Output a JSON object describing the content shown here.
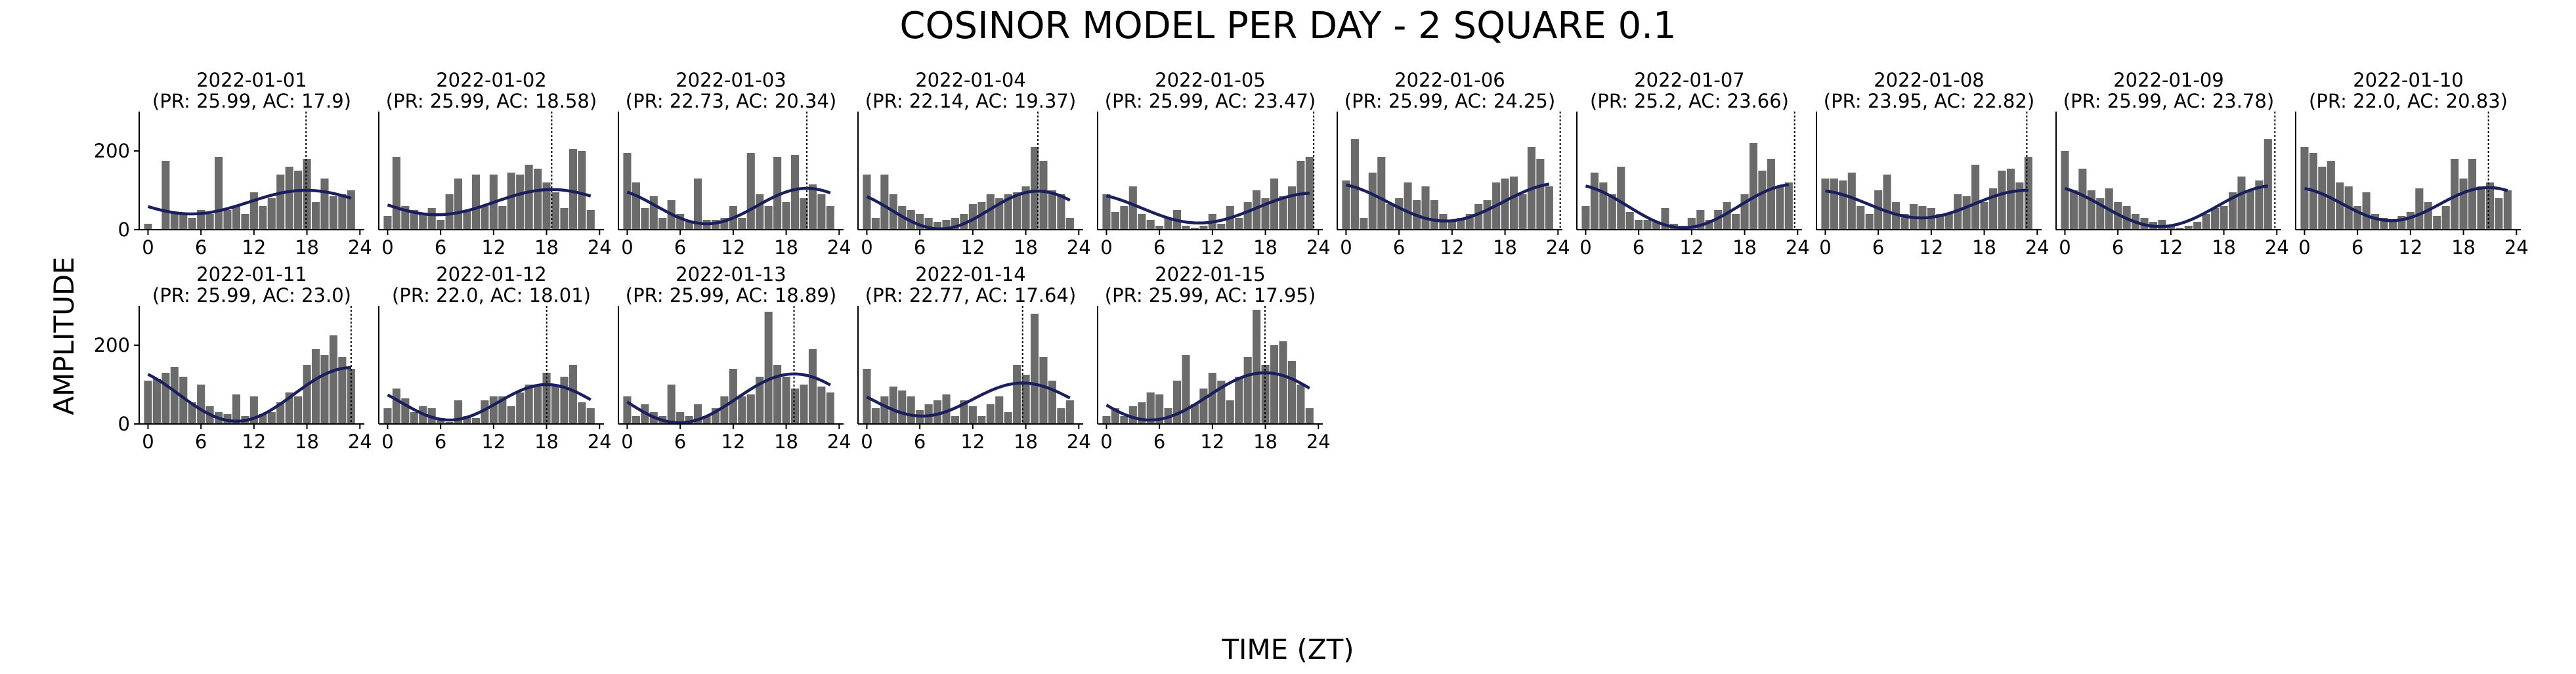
{
  "figure": {
    "title": "COSINOR MODEL PER DAY - 2 SQUARE 0.1",
    "xlabel": "TIME (ZT)",
    "ylabel": "AMPLITUDE"
  },
  "colors": {
    "bars": "#6b6b6b",
    "fit_line": "#1a1f5e",
    "acrophase_line": "#000000",
    "axes": "#000000"
  },
  "chart_data": [
    {
      "type": "bar",
      "title": "2022-01-01",
      "subtitle": "(PR: 25.99, AC: 17.9)",
      "x": [
        0,
        1,
        2,
        3,
        4,
        5,
        6,
        7,
        8,
        9,
        10,
        11,
        12,
        13,
        14,
        15,
        16,
        17,
        18,
        19,
        20,
        21,
        22,
        23
      ],
      "values": [
        15,
        0,
        175,
        45,
        40,
        30,
        50,
        40,
        185,
        50,
        60,
        40,
        95,
        60,
        80,
        140,
        160,
        150,
        180,
        70,
        130,
        85,
        90,
        100
      ],
      "fit": {
        "mesor": 70,
        "amplitude": 30,
        "acrophase": 17.9,
        "period": 25.99
      },
      "acrophase": 17.9,
      "xlim": [
        -1,
        24.5
      ],
      "xticks": [
        0,
        6,
        12,
        18,
        24
      ],
      "ylim": [
        0,
        300
      ],
      "yticks": [
        0,
        200
      ]
    },
    {
      "type": "bar",
      "title": "2022-01-02",
      "subtitle": "(PR: 25.99, AC: 18.58)",
      "x": [
        0,
        1,
        2,
        3,
        4,
        5,
        6,
        7,
        8,
        9,
        10,
        11,
        12,
        13,
        14,
        15,
        16,
        17,
        18,
        19,
        20,
        21,
        22,
        23
      ],
      "values": [
        35,
        185,
        60,
        50,
        40,
        55,
        25,
        90,
        130,
        50,
        140,
        60,
        140,
        60,
        145,
        140,
        165,
        155,
        120,
        95,
        55,
        205,
        200,
        50
      ],
      "fit": {
        "mesor": 70,
        "amplitude": 32,
        "acrophase": 18.58,
        "period": 25.99
      },
      "acrophase": 18.58,
      "xlim": [
        -1,
        24.5
      ],
      "xticks": [
        0,
        6,
        12,
        18,
        24
      ],
      "ylim": [
        0,
        300
      ],
      "yticks": [
        0,
        200
      ]
    },
    {
      "type": "bar",
      "title": "2022-01-03",
      "subtitle": "(PR: 22.73, AC: 20.34)",
      "x": [
        0,
        1,
        2,
        3,
        4,
        5,
        6,
        7,
        8,
        9,
        10,
        11,
        12,
        13,
        14,
        15,
        16,
        17,
        18,
        19,
        20,
        21,
        22,
        23
      ],
      "values": [
        195,
        120,
        55,
        85,
        30,
        75,
        40,
        20,
        130,
        25,
        25,
        30,
        60,
        30,
        195,
        90,
        60,
        185,
        70,
        190,
        80,
        115,
        90,
        60
      ],
      "fit": {
        "mesor": 60,
        "amplitude": 45,
        "acrophase": 20.34,
        "period": 22.73
      },
      "acrophase": 20.34,
      "xlim": [
        -1,
        24.5
      ],
      "xticks": [
        0,
        6,
        12,
        18,
        24
      ],
      "ylim": [
        0,
        300
      ],
      "yticks": [
        0,
        200
      ]
    },
    {
      "type": "bar",
      "title": "2022-01-04",
      "subtitle": "(PR: 22.14, AC: 19.37)",
      "x": [
        0,
        1,
        2,
        3,
        4,
        5,
        6,
        7,
        8,
        9,
        10,
        11,
        12,
        13,
        14,
        15,
        16,
        17,
        18,
        19,
        20,
        21,
        22,
        23
      ],
      "values": [
        140,
        30,
        140,
        90,
        60,
        50,
        40,
        30,
        20,
        25,
        30,
        40,
        65,
        70,
        90,
        80,
        90,
        95,
        110,
        210,
        175,
        100,
        90,
        30
      ],
      "fit": {
        "mesor": 50,
        "amplitude": 48,
        "acrophase": 19.37,
        "period": 22.14
      },
      "acrophase": 19.37,
      "xlim": [
        -1,
        24.5
      ],
      "xticks": [
        0,
        6,
        12,
        18,
        24
      ],
      "ylim": [
        0,
        300
      ],
      "yticks": [
        0,
        200
      ]
    },
    {
      "type": "bar",
      "title": "2022-01-05",
      "subtitle": "(PR: 25.99, AC: 23.47)",
      "x": [
        0,
        1,
        2,
        3,
        4,
        5,
        6,
        7,
        8,
        9,
        10,
        11,
        12,
        13,
        14,
        15,
        16,
        17,
        18,
        19,
        20,
        21,
        22,
        23
      ],
      "values": [
        90,
        45,
        60,
        110,
        40,
        25,
        10,
        30,
        50,
        10,
        5,
        10,
        40,
        15,
        60,
        30,
        70,
        100,
        80,
        130,
        85,
        110,
        175,
        185
      ],
      "fit": {
        "mesor": 55,
        "amplitude": 38,
        "acrophase": 23.47,
        "period": 25.99
      },
      "acrophase": 23.47,
      "xlim": [
        -1,
        24.5
      ],
      "xticks": [
        0,
        6,
        12,
        18,
        24
      ],
      "ylim": [
        0,
        300
      ],
      "yticks": [
        0,
        200
      ]
    },
    {
      "type": "bar",
      "title": "2022-01-06",
      "subtitle": "(PR: 25.99, AC: 24.25)",
      "x": [
        0,
        1,
        2,
        3,
        4,
        5,
        6,
        7,
        8,
        9,
        10,
        11,
        12,
        13,
        14,
        15,
        16,
        17,
        18,
        19,
        20,
        21,
        22,
        23
      ],
      "values": [
        125,
        230,
        30,
        145,
        185,
        65,
        80,
        120,
        75,
        110,
        75,
        40,
        25,
        30,
        40,
        65,
        75,
        120,
        130,
        135,
        90,
        210,
        180,
        110
      ],
      "fit": {
        "mesor": 70,
        "amplitude": 48,
        "acrophase": 24.25,
        "period": 25.99
      },
      "acrophase": 24.25,
      "xlim": [
        -1,
        24.5
      ],
      "xticks": [
        0,
        6,
        12,
        18,
        24
      ],
      "ylim": [
        0,
        300
      ],
      "yticks": [
        0,
        200
      ]
    },
    {
      "type": "bar",
      "title": "2022-01-07",
      "subtitle": "(PR: 25.2, AC: 23.66)",
      "x": [
        0,
        1,
        2,
        3,
        4,
        5,
        6,
        7,
        8,
        9,
        10,
        11,
        12,
        13,
        14,
        15,
        16,
        17,
        18,
        19,
        20,
        21,
        22,
        23
      ],
      "values": [
        60,
        145,
        120,
        90,
        160,
        45,
        25,
        25,
        20,
        55,
        15,
        10,
        30,
        50,
        25,
        50,
        70,
        40,
        90,
        220,
        150,
        180,
        110,
        120
      ],
      "fit": {
        "mesor": 60,
        "amplitude": 55,
        "acrophase": 23.66,
        "period": 25.2
      },
      "acrophase": 23.66,
      "xlim": [
        -1,
        24.5
      ],
      "xticks": [
        0,
        6,
        12,
        18,
        24
      ],
      "ylim": [
        0,
        300
      ],
      "yticks": [
        0,
        200
      ]
    },
    {
      "type": "bar",
      "title": "2022-01-08",
      "subtitle": "(PR: 23.95, AC: 22.82)",
      "x": [
        0,
        1,
        2,
        3,
        4,
        5,
        6,
        7,
        8,
        9,
        10,
        11,
        12,
        13,
        14,
        15,
        16,
        17,
        18,
        19,
        20,
        21,
        22,
        23
      ],
      "values": [
        130,
        130,
        125,
        145,
        60,
        40,
        100,
        140,
        70,
        40,
        65,
        60,
        55,
        40,
        40,
        90,
        85,
        165,
        70,
        105,
        150,
        155,
        120,
        185
      ],
      "fit": {
        "mesor": 65,
        "amplitude": 35,
        "acrophase": 22.82,
        "period": 23.95
      },
      "acrophase": 22.82,
      "xlim": [
        -1,
        24.5
      ],
      "xticks": [
        0,
        6,
        12,
        18,
        24
      ],
      "ylim": [
        0,
        300
      ],
      "yticks": [
        0,
        200
      ]
    },
    {
      "type": "bar",
      "title": "2022-01-09",
      "subtitle": "(PR: 25.99, AC: 23.78)",
      "x": [
        0,
        1,
        2,
        3,
        4,
        5,
        6,
        7,
        8,
        9,
        10,
        11,
        12,
        13,
        14,
        15,
        16,
        17,
        18,
        19,
        20,
        21,
        22,
        23
      ],
      "values": [
        200,
        100,
        155,
        100,
        80,
        105,
        70,
        60,
        40,
        30,
        20,
        25,
        10,
        5,
        10,
        20,
        40,
        55,
        60,
        95,
        135,
        100,
        125,
        230
      ],
      "fit": {
        "mesor": 60,
        "amplitude": 52,
        "acrophase": 23.78,
        "period": 25.99
      },
      "acrophase": 23.78,
      "xlim": [
        -1,
        24.5
      ],
      "xticks": [
        0,
        6,
        12,
        18,
        24
      ],
      "ylim": [
        0,
        300
      ],
      "yticks": [
        0,
        200
      ]
    },
    {
      "type": "bar",
      "title": "2022-01-10",
      "subtitle": "(PR: 22.0, AC: 20.83)",
      "x": [
        0,
        1,
        2,
        3,
        4,
        5,
        6,
        7,
        8,
        9,
        10,
        11,
        12,
        13,
        14,
        15,
        16,
        17,
        18,
        19,
        20,
        21,
        22,
        23
      ],
      "values": [
        210,
        195,
        160,
        175,
        120,
        110,
        60,
        95,
        40,
        30,
        20,
        35,
        45,
        105,
        70,
        35,
        60,
        180,
        130,
        180,
        110,
        120,
        80,
        100
      ],
      "fit": {
        "mesor": 65,
        "amplitude": 42,
        "acrophase": 20.83,
        "period": 22.0
      },
      "acrophase": 20.83,
      "xlim": [
        -1,
        24.5
      ],
      "xticks": [
        0,
        6,
        12,
        18,
        24
      ],
      "ylim": [
        0,
        300
      ],
      "yticks": [
        0,
        200
      ]
    },
    {
      "type": "bar",
      "title": "2022-01-11",
      "subtitle": "(PR: 25.99, AC: 23.0)",
      "x": [
        0,
        1,
        2,
        3,
        4,
        5,
        6,
        7,
        8,
        9,
        10,
        11,
        12,
        13,
        14,
        15,
        16,
        17,
        18,
        19,
        20,
        21,
        22,
        23
      ],
      "values": [
        110,
        115,
        130,
        145,
        120,
        55,
        100,
        45,
        30,
        25,
        75,
        20,
        70,
        25,
        30,
        55,
        80,
        70,
        150,
        190,
        175,
        225,
        170,
        140
      ],
      "fit": {
        "mesor": 75,
        "amplitude": 68,
        "acrophase": 23.0,
        "period": 25.99
      },
      "acrophase": 23.0,
      "xlim": [
        -1,
        24.5
      ],
      "xticks": [
        0,
        6,
        12,
        18,
        24
      ],
      "ylim": [
        0,
        300
      ],
      "yticks": [
        0,
        200
      ]
    },
    {
      "type": "bar",
      "title": "2022-01-12",
      "subtitle": "(PR: 22.0, AC: 18.01)",
      "x": [
        0,
        1,
        2,
        3,
        4,
        5,
        6,
        7,
        8,
        9,
        10,
        11,
        12,
        13,
        14,
        15,
        16,
        17,
        18,
        19,
        20,
        21,
        22,
        23
      ],
      "values": [
        40,
        90,
        65,
        30,
        45,
        40,
        15,
        5,
        60,
        20,
        15,
        60,
        70,
        70,
        45,
        80,
        100,
        95,
        130,
        100,
        120,
        150,
        55,
        40
      ],
      "fit": {
        "mesor": 55,
        "amplitude": 45,
        "acrophase": 18.01,
        "period": 22.0
      },
      "acrophase": 18.01,
      "xlim": [
        -1,
        24.5
      ],
      "xticks": [
        0,
        6,
        12,
        18,
        24
      ],
      "ylim": [
        0,
        300
      ],
      "yticks": [
        0,
        200
      ]
    },
    {
      "type": "bar",
      "title": "2022-01-13",
      "subtitle": "(PR: 25.99, AC: 18.89)",
      "x": [
        0,
        1,
        2,
        3,
        4,
        5,
        6,
        7,
        8,
        9,
        10,
        11,
        12,
        13,
        14,
        15,
        16,
        17,
        18,
        19,
        20,
        21,
        22,
        23
      ],
      "values": [
        70,
        20,
        50,
        30,
        20,
        100,
        30,
        20,
        50,
        20,
        40,
        70,
        140,
        70,
        75,
        120,
        285,
        150,
        120,
        90,
        100,
        190,
        95,
        80
      ],
      "fit": {
        "mesor": 65,
        "amplitude": 62,
        "acrophase": 18.89,
        "period": 25.99
      },
      "acrophase": 18.89,
      "xlim": [
        -1,
        24.5
      ],
      "xticks": [
        0,
        6,
        12,
        18,
        24
      ],
      "ylim": [
        0,
        300
      ],
      "yticks": [
        0,
        200
      ]
    },
    {
      "type": "bar",
      "title": "2022-01-14",
      "subtitle": "(PR: 22.77, AC: 17.64)",
      "x": [
        0,
        1,
        2,
        3,
        4,
        5,
        6,
        7,
        8,
        9,
        10,
        11,
        12,
        13,
        14,
        15,
        16,
        17,
        18,
        19,
        20,
        21,
        22,
        23
      ],
      "values": [
        140,
        40,
        70,
        95,
        85,
        70,
        35,
        50,
        60,
        75,
        20,
        60,
        45,
        20,
        50,
        70,
        30,
        150,
        125,
        280,
        170,
        110,
        40,
        60
      ],
      "fit": {
        "mesor": 62,
        "amplitude": 42,
        "acrophase": 17.64,
        "period": 22.77
      },
      "acrophase": 17.64,
      "xlim": [
        -1,
        24.5
      ],
      "xticks": [
        0,
        6,
        12,
        18,
        24
      ],
      "ylim": [
        0,
        300
      ],
      "yticks": [
        0,
        200
      ]
    },
    {
      "type": "bar",
      "title": "2022-01-15",
      "subtitle": "(PR: 25.99, AC: 17.95)",
      "x": [
        0,
        1,
        2,
        3,
        4,
        5,
        6,
        7,
        8,
        9,
        10,
        11,
        12,
        13,
        14,
        15,
        16,
        17,
        18,
        19,
        20,
        21,
        22,
        23
      ],
      "values": [
        20,
        40,
        20,
        45,
        55,
        80,
        75,
        40,
        110,
        175,
        50,
        90,
        130,
        110,
        60,
        120,
        170,
        290,
        150,
        200,
        210,
        160,
        100,
        40
      ],
      "fit": {
        "mesor": 70,
        "amplitude": 60,
        "acrophase": 17.95,
        "period": 25.99
      },
      "acrophase": 17.95,
      "xlim": [
        -1,
        24.5
      ],
      "xticks": [
        0,
        6,
        12,
        18,
        24
      ],
      "ylim": [
        0,
        300
      ],
      "yticks": [
        0,
        200
      ]
    }
  ]
}
